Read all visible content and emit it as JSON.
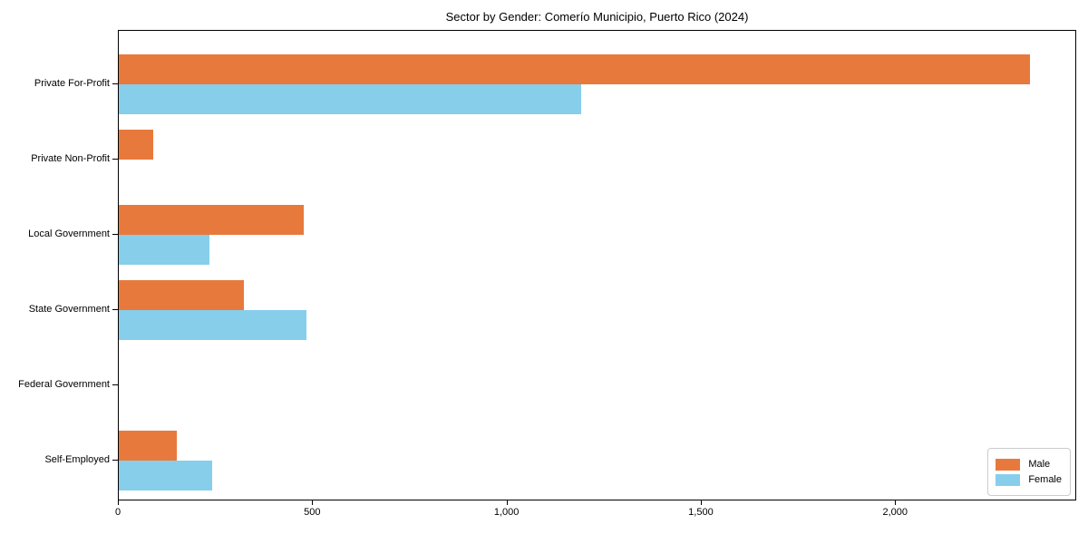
{
  "chart_data": {
    "type": "bar",
    "orientation": "horizontal",
    "title": "Sector by Gender: Comerío Municipio, Puerto Rico (2024)",
    "categories": [
      "Private For-Profit",
      "Private Non-Profit",
      "Local Government",
      "State Government",
      "Federal Government",
      "Self-Employed"
    ],
    "series": [
      {
        "name": "Male",
        "color": "#e8793c",
        "values": [
          2345,
          89,
          476,
          322,
          0,
          149
        ]
      },
      {
        "name": "Female",
        "color": "#87ceeb",
        "values": [
          1190,
          0,
          233,
          483,
          0,
          240
        ]
      }
    ],
    "xlabel": "",
    "ylabel": "",
    "xlim": [
      0,
      2466
    ],
    "x_ticks": [
      0,
      500,
      1000,
      1500,
      2000
    ],
    "x_tick_labels": [
      "0",
      "500",
      "1,000",
      "1,500",
      "2,000"
    ],
    "grid": false,
    "legend_position": "lower right",
    "axis_color": "#000000",
    "background_color": "#ffffff"
  }
}
